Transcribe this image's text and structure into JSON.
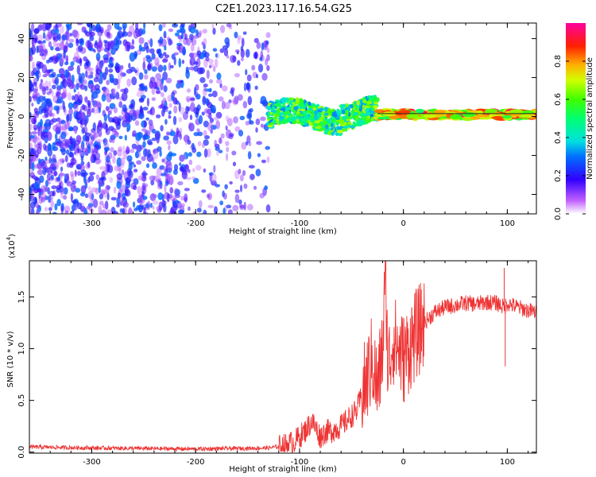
{
  "title": "C2E1.2023.117.16.54.G25",
  "chart_data": [
    {
      "type": "heatmap",
      "panel": "top",
      "xlabel": "Height of straight line (km)",
      "ylabel": "Frequency (Hz)",
      "xlim": [
        -360,
        128
      ],
      "ylim": [
        -50,
        48
      ],
      "xticks": [
        -300,
        -200,
        -100,
        0,
        100
      ],
      "xtick_labels": [
        "-300",
        "-200",
        "-100",
        "0",
        "100"
      ],
      "yticks": [
        -40,
        -20,
        0,
        20,
        40
      ],
      "ytick_labels": [
        "-40",
        "-20",
        "0",
        "20",
        "40"
      ],
      "colorbar": {
        "label": "Normalized spectral amplitude",
        "range": [
          0,
          1
        ],
        "ticks": [
          0.0,
          0.2,
          0.4,
          0.6,
          0.8
        ],
        "tick_labels": [
          "0.0",
          "0.2",
          "0.4",
          "0.6",
          "0.8"
        ]
      },
      "regions": [
        {
          "name": "diffuse noise",
          "x_range": [
            -360,
            -130
          ],
          "freq_range": [
            -50,
            48
          ],
          "amplitude_range": [
            0.05,
            0.3
          ]
        },
        {
          "name": "tone track",
          "x_range": [
            -130,
            -25
          ],
          "freq_range": [
            -8,
            10
          ],
          "amplitude_range": [
            0.3,
            0.7
          ]
        },
        {
          "name": "steady tone",
          "x_range": [
            -25,
            128
          ],
          "freq_range": [
            -2,
            3
          ],
          "amplitude_range": [
            0.5,
            0.95
          ]
        }
      ]
    },
    {
      "type": "line",
      "panel": "bottom",
      "xlabel": "Height of straight line (km)",
      "ylabel": "SNR (10 * v/v)",
      "y_multiplier_label": "(x10",
      "y_multiplier_exp": "4",
      "xlim": [
        -360,
        128
      ],
      "ylim": [
        -0.01,
        1.85
      ],
      "xticks": [
        -300,
        -200,
        -100,
        0,
        100
      ],
      "xtick_labels": [
        "-300",
        "-200",
        "-100",
        "0",
        "100"
      ],
      "yticks": [
        0.0,
        0.5,
        1.0,
        1.5
      ],
      "ytick_labels": [
        "0.0",
        "0.5",
        "1.0",
        "1.5"
      ],
      "color": "#ee3333",
      "series": [
        {
          "name": "SNR",
          "x": [
            -360,
            -300,
            -200,
            -130,
            -115,
            -105,
            -100,
            -95,
            -88,
            -80,
            -75,
            -70,
            -60,
            -50,
            -45,
            -40,
            -35,
            -30,
            -25,
            -20,
            -17,
            -15,
            -10,
            -5,
            0,
            5,
            10,
            20,
            30,
            40,
            50,
            60,
            70,
            80,
            90,
            97,
            100,
            110,
            120,
            128
          ],
          "y": [
            0.05,
            0.04,
            0.03,
            0.04,
            0.06,
            0.1,
            0.15,
            0.2,
            0.3,
            0.15,
            0.2,
            0.2,
            0.25,
            0.35,
            0.4,
            0.55,
            0.7,
            0.9,
            0.6,
            1.0,
            1.75,
            0.8,
            1.1,
            1.0,
            0.9,
            1.0,
            1.1,
            1.25,
            1.35,
            1.4,
            1.42,
            1.44,
            1.43,
            1.45,
            1.44,
            1.4,
            1.44,
            1.4,
            1.37,
            1.35
          ]
        }
      ],
      "spikes": [
        {
          "x": -17,
          "y": 1.85
        },
        {
          "x": 8,
          "y": 1.4
        },
        {
          "x": 97,
          "y": 1.78
        },
        {
          "x": 98,
          "y": 0.83
        }
      ]
    }
  ]
}
